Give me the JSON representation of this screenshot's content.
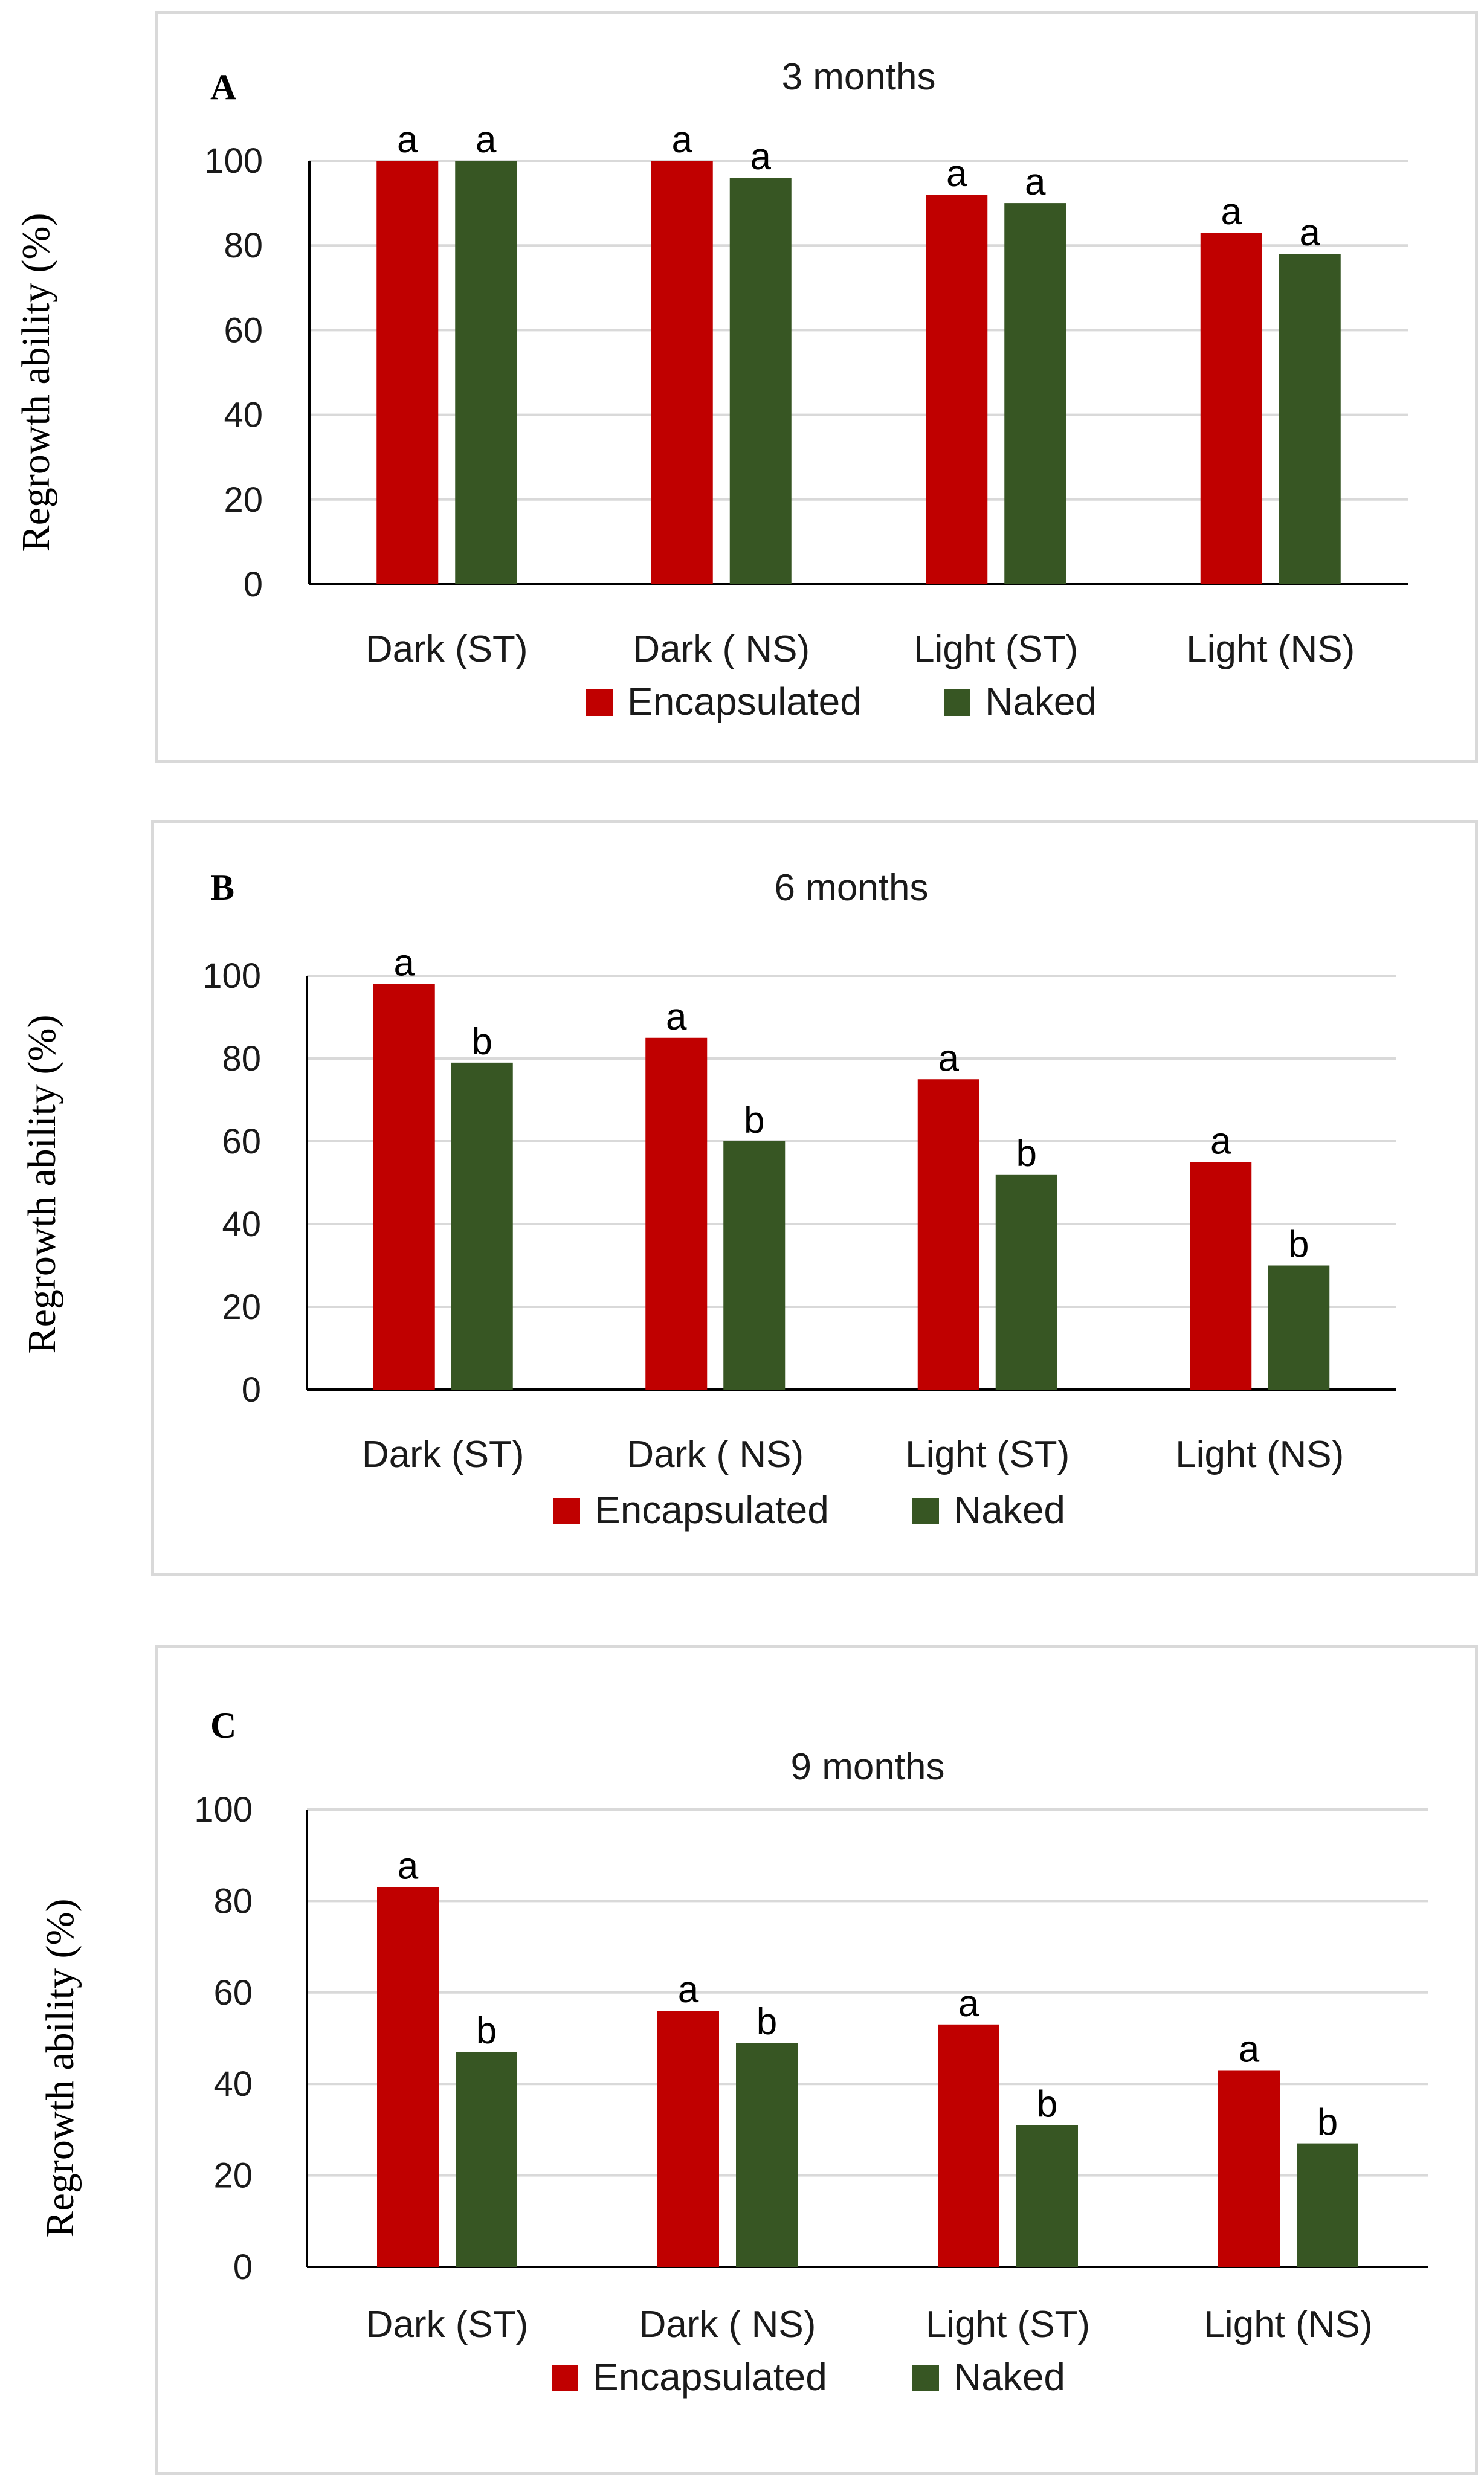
{
  "colors": {
    "encapsulated": "#c00000",
    "naked": "#375623",
    "grid": "#d9d9d9",
    "axis": "#000000"
  },
  "chart_data": [
    {
      "panel": "A",
      "type": "bar",
      "title": "3 months",
      "ylabel": "Regrowth ability (%)",
      "xlabel": "",
      "categories": [
        "Dark (ST)",
        "Dark ( NS)",
        "Light (ST)",
        "Light (NS)"
      ],
      "ylim": [
        0,
        100
      ],
      "yticks": [
        0,
        20,
        40,
        60,
        80,
        100
      ],
      "series": [
        {
          "name": "Encapsulated",
          "values": [
            100,
            100,
            92,
            83
          ],
          "letters": [
            "a",
            "a",
            "a",
            "a"
          ]
        },
        {
          "name": "Naked",
          "values": [
            100,
            96,
            90,
            78
          ],
          "letters": [
            "a",
            "a",
            "a",
            "a"
          ]
        }
      ],
      "legend": "bottom"
    },
    {
      "panel": "B",
      "type": "bar",
      "title": "6 months",
      "ylabel": "Regrowth ability (%)",
      "xlabel": "",
      "categories": [
        "Dark (ST)",
        "Dark ( NS)",
        "Light (ST)",
        "Light (NS)"
      ],
      "ylim": [
        0,
        100
      ],
      "yticks": [
        0,
        20,
        40,
        60,
        80,
        100
      ],
      "series": [
        {
          "name": "Encapsulated",
          "values": [
            98,
            85,
            75,
            55
          ],
          "letters": [
            "a",
            "a",
            "a",
            "a"
          ]
        },
        {
          "name": "Naked",
          "values": [
            79,
            60,
            52,
            30
          ],
          "letters": [
            "b",
            "b",
            "b",
            "b"
          ]
        }
      ],
      "legend": "bottom"
    },
    {
      "panel": "C",
      "type": "bar",
      "title": "9 months",
      "ylabel": "Regrowth ability (%)",
      "xlabel": "",
      "categories": [
        "Dark (ST)",
        "Dark ( NS)",
        "Light (ST)",
        "Light (NS)"
      ],
      "ylim": [
        0,
        100
      ],
      "yticks": [
        0,
        20,
        40,
        60,
        80,
        100
      ],
      "series": [
        {
          "name": "Encapsulated",
          "values": [
            83,
            56,
            53,
            43
          ],
          "letters": [
            "a",
            "a",
            "a",
            "a"
          ]
        },
        {
          "name": "Naked",
          "values": [
            47,
            49,
            31,
            27
          ],
          "letters": [
            "b",
            "b",
            "b",
            "b"
          ]
        }
      ],
      "legend": "bottom"
    }
  ]
}
